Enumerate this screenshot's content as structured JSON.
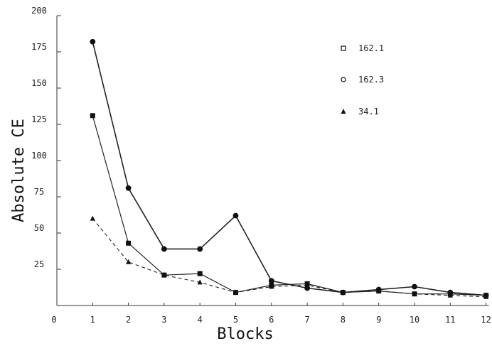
{
  "chart_data": {
    "type": "line",
    "xlabel": "Blocks",
    "ylabel": "Absolute CE",
    "xlim": [
      0,
      12
    ],
    "ylim": [
      0,
      200
    ],
    "x_ticks": [
      "0",
      "1",
      "2",
      "3",
      "4",
      "5",
      "6",
      "7",
      "8",
      "9",
      "10",
      "11",
      "12"
    ],
    "y_ticks": [
      "25",
      "50",
      "75",
      "100",
      "125",
      "150",
      "175",
      "200"
    ],
    "grid": false,
    "legend_position": "top-right",
    "series": [
      {
        "name": "162.1",
        "marker": "square",
        "x": [
          1,
          2,
          3,
          4,
          5,
          6,
          7,
          8,
          9,
          10,
          11,
          12
        ],
        "y": [
          131,
          43,
          21,
          22,
          9,
          14,
          15,
          9,
          10,
          8,
          8,
          7
        ]
      },
      {
        "name": "162.3",
        "marker": "circle",
        "x": [
          1,
          2,
          3,
          4,
          5,
          6,
          7,
          8,
          9,
          10,
          11,
          12
        ],
        "y": [
          182,
          81,
          39,
          39,
          62,
          17,
          12,
          9,
          11,
          13,
          9,
          7
        ]
      },
      {
        "name": "34.1",
        "marker": "triangle",
        "x": [
          1,
          2,
          3,
          4,
          5,
          6,
          7,
          8,
          9,
          10,
          11,
          12
        ],
        "y": [
          60,
          30,
          21,
          16,
          9,
          13,
          14,
          9,
          10,
          8,
          7,
          6
        ]
      }
    ]
  }
}
